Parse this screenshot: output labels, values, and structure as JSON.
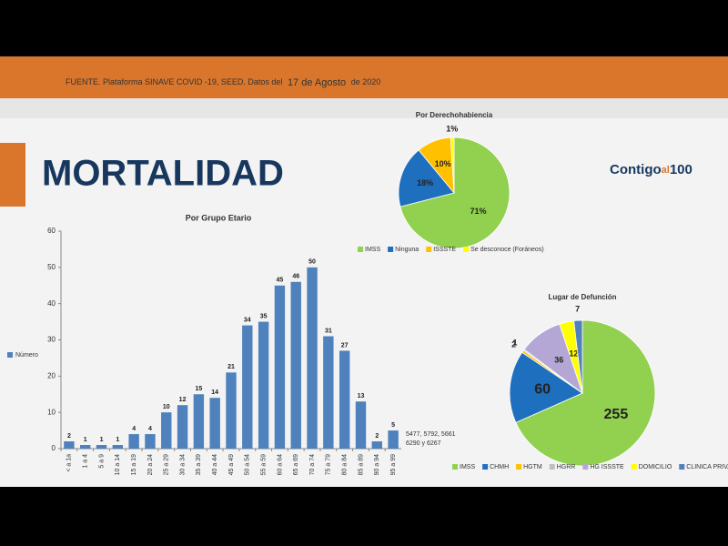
{
  "header": {
    "source": [
      "FUENTE. Plataforma SINAVE COVID -19, SEED. Datos del",
      "17 de Agosto",
      "de 2020"
    ]
  },
  "title": "MORTALIDAD",
  "logo": [
    "Contigo",
    "al",
    "100"
  ],
  "chart_data": [
    {
      "type": "bar",
      "title": "Por Grupo Etario",
      "categories": [
        "< a 1a",
        "1 a 4",
        "5 a 9",
        "10 a 14",
        "15 a 19",
        "20 a 24",
        "25 a 29",
        "30 a 34",
        "35 a 39",
        "40 a 44",
        "45 a 49",
        "50 a 54",
        "55 a 59",
        "60 a 64",
        "65 a 69",
        "70 a 74",
        "75 a 79",
        "80 a 84",
        "85 a 89",
        "90 a 94",
        "95 a 99"
      ],
      "series": [
        {
          "name": "Número",
          "color": "#4f81bd",
          "values": [
            2,
            1,
            1,
            1,
            4,
            4,
            10,
            12,
            15,
            14,
            21,
            34,
            35,
            45,
            46,
            50,
            31,
            27,
            13,
            2,
            5
          ]
        }
      ],
      "ylim": [
        0,
        60
      ],
      "yticks": [
        0,
        10,
        20,
        30,
        40,
        50,
        60
      ],
      "annotation": [
        "5477, 5792, 5661",
        "6290 y 6267"
      ]
    },
    {
      "type": "pie",
      "title": "Por Derechohabiencia",
      "categories": [
        "IMSS",
        "Ninguna",
        "ISSSTE",
        "Se desconoce (Foráneos)"
      ],
      "values": [
        71,
        18,
        10,
        1
      ],
      "value_labels": [
        "71%",
        "18%",
        "10%",
        "1%"
      ],
      "colors": [
        "#92d050",
        "#1f6fbf",
        "#ffc000",
        "#ffff00"
      ]
    },
    {
      "type": "pie",
      "title": "Lugar de Defunción",
      "categories": [
        "IMSS",
        "CHMH",
        "HGTM",
        "HGRR",
        "HG ISSSTE",
        "DOMICILIO",
        "CLINICA PRIVADA"
      ],
      "values": [
        255,
        60,
        2,
        1,
        36,
        12,
        7
      ],
      "colors": [
        "#92d050",
        "#1f6fbf",
        "#ffc000",
        "#bfbfbf",
        "#b4a7d6",
        "#ffff00",
        "#4f81bd"
      ]
    }
  ]
}
